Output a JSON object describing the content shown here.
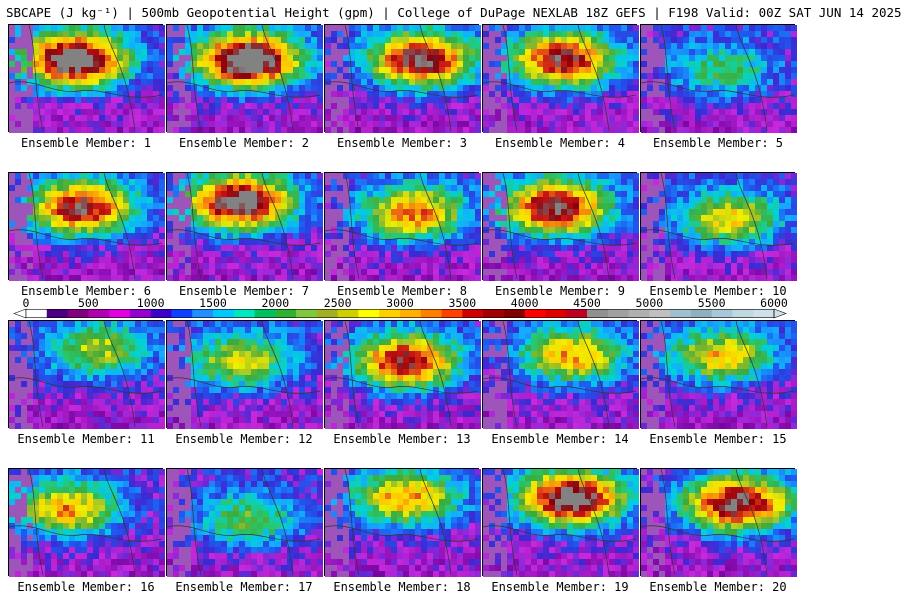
{
  "header": {
    "title": "SBCAPE (J kg⁻¹) | 500mb Geopotential Height (gpm) | College of DuPage NEXLAB 18Z GEFS | F198 Valid: 00Z SAT JUN 14 2025"
  },
  "colorbar": {
    "ticks": [
      "0",
      "500",
      "1000",
      "1500",
      "2000",
      "2500",
      "3000",
      "3500",
      "4000",
      "4500",
      "5000",
      "5500",
      "6000"
    ],
    "colors": [
      "#ffffff",
      "#4b0082",
      "#800080",
      "#b000b0",
      "#e000e0",
      "#9300d0",
      "#3d00c8",
      "#1040ff",
      "#2090ff",
      "#00c8ff",
      "#00e8c0",
      "#00c060",
      "#30b030",
      "#80c840",
      "#a0b020",
      "#d0d000",
      "#ffff00",
      "#ffd000",
      "#ffb000",
      "#ff8000",
      "#ff4000",
      "#d00000",
      "#a00000",
      "#800000",
      "#ff0000",
      "#e00000",
      "#c00020",
      "#909090",
      "#a0a0a0",
      "#b0b0b0",
      "#c0c0c0",
      "#a0c0d0",
      "#90b0c0",
      "#a8c8d8",
      "#c0d8e0",
      "#d0e0e8"
    ]
  },
  "members": [
    {
      "label": "Ensemble Member: 1",
      "field": {
        "intensity": 0.95,
        "center": [
          0.4,
          0.3
        ]
      }
    },
    {
      "label": "Ensemble Member: 2",
      "field": {
        "intensity": 1.0,
        "center": [
          0.5,
          0.3
        ]
      }
    },
    {
      "label": "Ensemble Member: 3",
      "field": {
        "intensity": 0.85,
        "center": [
          0.6,
          0.3
        ]
      }
    },
    {
      "label": "Ensemble Member: 4",
      "field": {
        "intensity": 0.8,
        "center": [
          0.5,
          0.3
        ]
      }
    },
    {
      "label": "Ensemble Member: 5",
      "field": {
        "intensity": 0.35,
        "center": [
          0.5,
          0.4
        ]
      }
    },
    {
      "label": "Ensemble Member: 6",
      "field": {
        "intensity": 0.8,
        "center": [
          0.45,
          0.3
        ]
      }
    },
    {
      "label": "Ensemble Member: 7",
      "field": {
        "intensity": 0.9,
        "center": [
          0.45,
          0.25
        ]
      }
    },
    {
      "label": "Ensemble Member: 8",
      "field": {
        "intensity": 0.65,
        "center": [
          0.55,
          0.35
        ]
      }
    },
    {
      "label": "Ensemble Member: 9",
      "field": {
        "intensity": 0.85,
        "center": [
          0.45,
          0.3
        ]
      }
    },
    {
      "label": "Ensemble Member: 10",
      "field": {
        "intensity": 0.55,
        "center": [
          0.55,
          0.4
        ]
      }
    },
    {
      "label": "Ensemble Member: 11",
      "field": {
        "intensity": 0.45,
        "center": [
          0.55,
          0.25
        ]
      }
    },
    {
      "label": "Ensemble Member: 12",
      "field": {
        "intensity": 0.5,
        "center": [
          0.45,
          0.35
        ]
      }
    },
    {
      "label": "Ensemble Member: 13",
      "field": {
        "intensity": 0.8,
        "center": [
          0.5,
          0.35
        ]
      }
    },
    {
      "label": "Ensemble Member: 14",
      "field": {
        "intensity": 0.6,
        "center": [
          0.55,
          0.3
        ]
      }
    },
    {
      "label": "Ensemble Member: 15",
      "field": {
        "intensity": 0.55,
        "center": [
          0.5,
          0.3
        ]
      }
    },
    {
      "label": "Ensemble Member: 16",
      "field": {
        "intensity": 0.6,
        "center": [
          0.35,
          0.35
        ]
      }
    },
    {
      "label": "Ensemble Member: 17",
      "field": {
        "intensity": 0.4,
        "center": [
          0.5,
          0.45
        ]
      }
    },
    {
      "label": "Ensemble Member: 18",
      "field": {
        "intensity": 0.6,
        "center": [
          0.5,
          0.25
        ]
      }
    },
    {
      "label": "Ensemble Member: 19",
      "field": {
        "intensity": 0.9,
        "center": [
          0.55,
          0.25
        ]
      }
    },
    {
      "label": "Ensemble Member: 20",
      "field": {
        "intensity": 0.85,
        "center": [
          0.6,
          0.3
        ]
      }
    }
  ]
}
